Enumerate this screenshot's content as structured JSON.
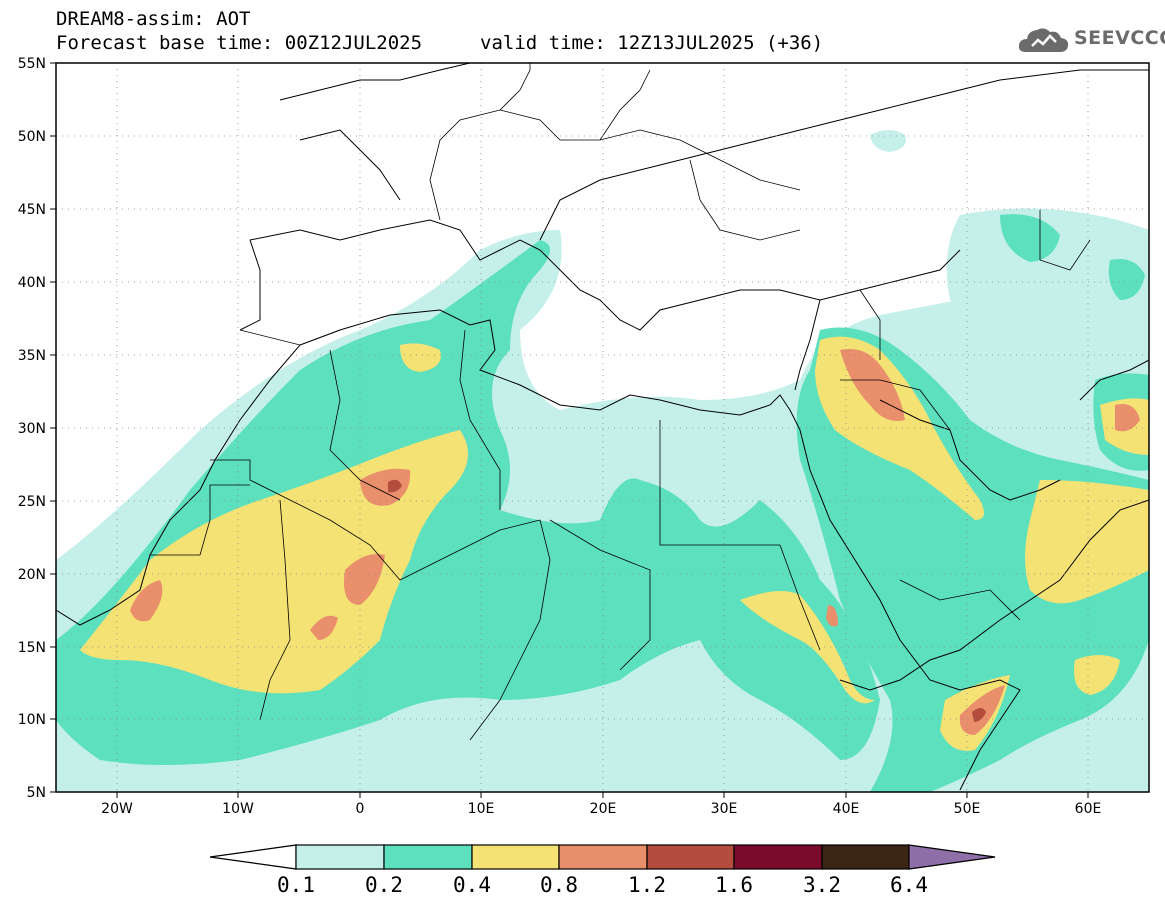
{
  "header": {
    "title": "DREAM8-assim: AOT",
    "subtitle": "Forecast base time: 00Z12JUL2025",
    "valid_time": "valid time: 12Z13JUL2025 (+36)"
  },
  "logo": {
    "text": "SEEVCCC",
    "icon": "cloud-icon"
  },
  "axes": {
    "lat_labels": [
      "55N",
      "50N",
      "45N",
      "40N",
      "35N",
      "30N",
      "25N",
      "20N",
      "15N",
      "10N",
      "5N"
    ],
    "lon_labels": [
      "20W",
      "10W",
      "0",
      "10E",
      "20E",
      "30E",
      "40E",
      "50E",
      "60E"
    ],
    "lat_range": [
      5,
      55
    ],
    "lon_range": [
      -25,
      65
    ],
    "grid": "dotted"
  },
  "colorbar": {
    "labels": [
      "0.1",
      "0.2",
      "0.4",
      "0.8",
      "1.2",
      "1.6",
      "3.2",
      "6.4"
    ],
    "colors": [
      "#c5f0ea",
      "#5de0bd",
      "#f5e275",
      "#e98f6c",
      "#b44d3d",
      "#7a0b2d",
      "#3c2515",
      "#8e6fa8"
    ]
  },
  "colors": {
    "level_0_1": "#c5f0ea",
    "level_0_2": "#5de0bd",
    "level_0_4": "#f5e275",
    "level_0_8": "#e98f6c",
    "level_1_2": "#b44d3d",
    "level_1_6": "#7a0b2d",
    "level_3_2": "#3c2515",
    "level_6_4": "#8e6fa8"
  }
}
